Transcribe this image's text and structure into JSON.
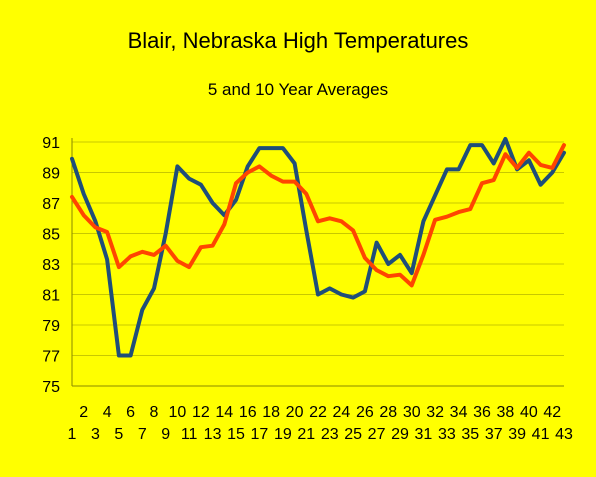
{
  "chart_data": {
    "type": "line",
    "title": "Blair, Nebraska High Temperatures",
    "subtitle": "5 and 10 Year Averages",
    "xlabel": "",
    "ylabel": "",
    "ylim": [
      75,
      92
    ],
    "yticks": [
      75,
      77,
      79,
      81,
      83,
      85,
      87,
      89,
      91
    ],
    "grid": true,
    "x": [
      1,
      2,
      3,
      4,
      5,
      6,
      7,
      8,
      9,
      10,
      11,
      12,
      13,
      14,
      15,
      16,
      17,
      18,
      19,
      20,
      21,
      22,
      23,
      24,
      25,
      26,
      27,
      28,
      29,
      30,
      31,
      32,
      33,
      34,
      35,
      36,
      37,
      38,
      39,
      40,
      41,
      42,
      43
    ],
    "series": [
      {
        "color": "#1f4e79",
        "values": [
          89.9,
          87.6,
          85.8,
          83.3,
          77.0,
          77.0,
          80.0,
          81.4,
          85.0,
          89.4,
          88.6,
          88.2,
          87.0,
          86.2,
          87.2,
          89.4,
          90.6,
          90.6,
          90.6,
          89.6,
          85.2,
          81.0,
          81.4,
          81.0,
          80.8,
          81.2,
          84.4,
          83.0,
          83.6,
          82.4,
          85.8,
          87.5,
          89.2,
          89.2,
          90.8,
          90.8,
          89.6,
          91.2,
          89.2,
          89.8,
          88.2,
          89.0,
          90.3
        ]
      },
      {
        "color": "#ff4500",
        "values": [
          87.4,
          86.2,
          85.4,
          85.1,
          82.8,
          83.5,
          83.8,
          83.6,
          84.2,
          83.2,
          82.8,
          84.1,
          84.2,
          85.6,
          88.3,
          89.0,
          89.4,
          88.8,
          88.4,
          88.4,
          87.6,
          85.8,
          86.0,
          85.8,
          85.2,
          83.4,
          82.6,
          82.2,
          82.3,
          81.6,
          83.6,
          85.9,
          86.1,
          86.4,
          86.6,
          88.3,
          88.5,
          90.2,
          89.3,
          90.3,
          89.5,
          89.3,
          90.8
        ]
      }
    ]
  }
}
